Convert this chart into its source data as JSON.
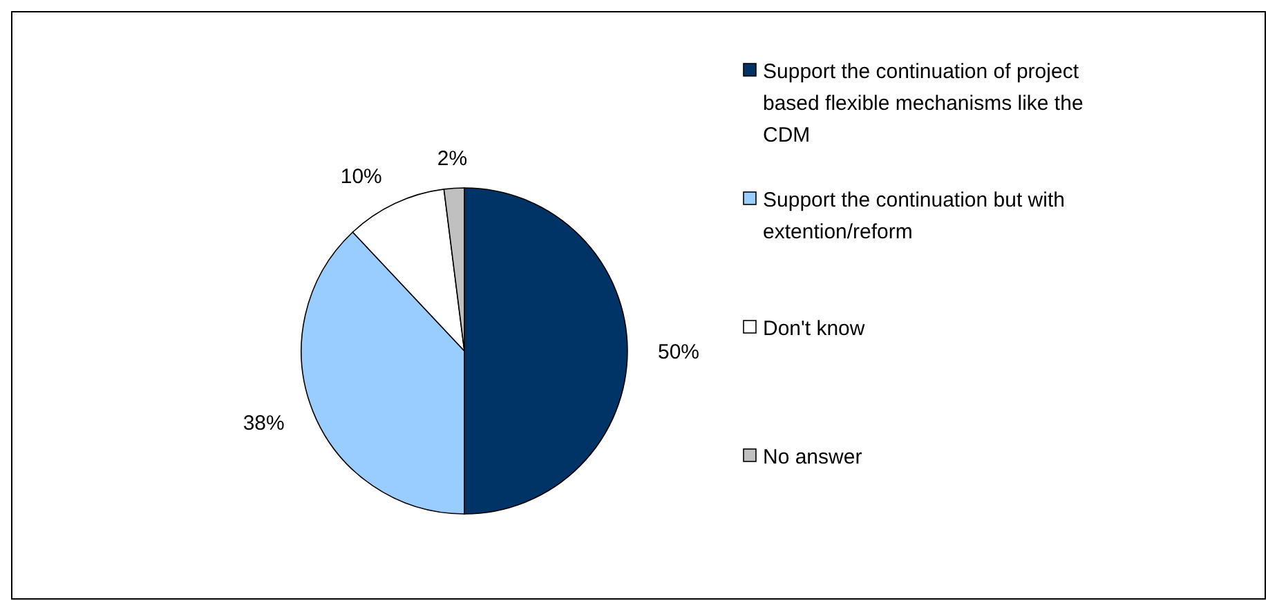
{
  "chart_data": {
    "type": "pie",
    "categories": [
      "Support the continuation of project based flexible mechanisms like the CDM",
      "Support the continuation but with extention/reform",
      "Don't know",
      "No answer"
    ],
    "values": [
      50,
      38,
      10,
      2
    ],
    "colors": [
      "#003366",
      "#99ccff",
      "#ffffff",
      "#c0c0c0"
    ],
    "value_labels": [
      "50%",
      "38%",
      "10%",
      "2%"
    ],
    "legend": "right"
  }
}
